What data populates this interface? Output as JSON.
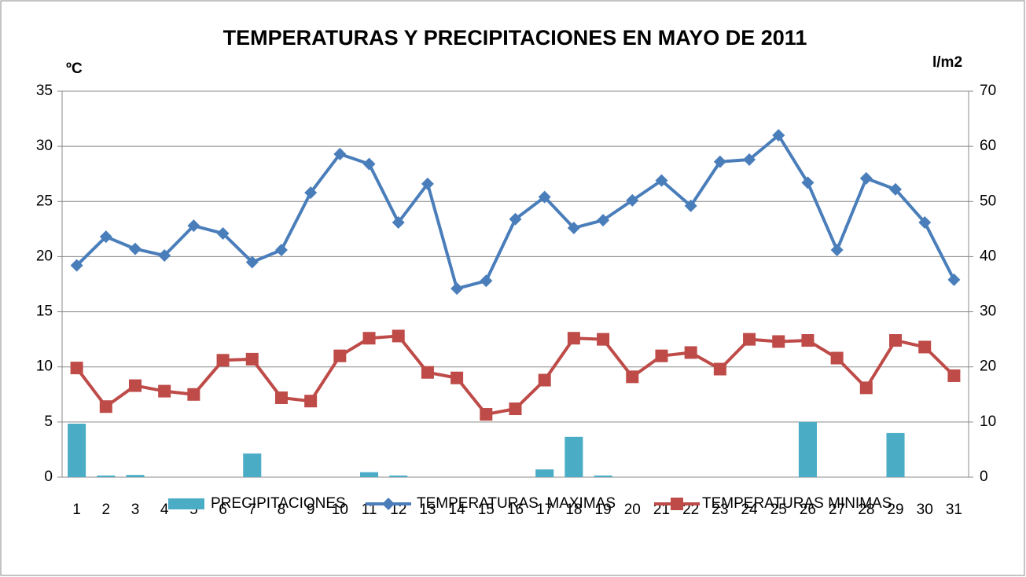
{
  "chart_data": {
    "type": "bar_line",
    "title": "TEMPERATURAS Y PRECIPITACIONES EN MAYO DE 2011",
    "y_label": "ºC",
    "y2_label": "l/m2",
    "categories": [
      "1",
      "2",
      "3",
      "4",
      "5",
      "6",
      "7",
      "8",
      "9",
      "10",
      "11",
      "12",
      "13",
      "14",
      "15",
      "16",
      "17",
      "18",
      "19",
      "20",
      "21",
      "22",
      "23",
      "24",
      "25",
      "26",
      "27",
      "28",
      "29",
      "30",
      "31"
    ],
    "series": [
      {
        "name": "PRECIPITACIONES",
        "type": "bar",
        "axis": "y2",
        "color": "#4bacc6",
        "values": [
          9.7,
          0.3,
          0.4,
          0,
          0,
          0,
          4.3,
          0,
          0,
          0,
          0.9,
          0.3,
          0,
          0,
          0,
          0,
          1.4,
          7.3,
          0.3,
          0,
          0,
          0,
          0,
          0,
          0,
          10.0,
          0,
          0,
          8.0,
          0,
          0
        ]
      },
      {
        "name": "TEMPERATURAS  MAXIMAS",
        "type": "line",
        "marker": "diamond",
        "color": "#4a7ebb",
        "values": [
          19.2,
          21.8,
          20.7,
          20.1,
          22.8,
          22.1,
          19.5,
          20.6,
          25.8,
          29.3,
          28.4,
          23.1,
          26.6,
          17.1,
          17.8,
          23.4,
          25.4,
          22.6,
          23.3,
          25.1,
          26.9,
          24.6,
          28.6,
          28.8,
          31.0,
          26.7,
          20.6,
          27.1,
          26.1,
          23.1,
          17.9
        ]
      },
      {
        "name": "TEMPERATURAS MINIMAS",
        "type": "line",
        "marker": "square",
        "color": "#be4b48",
        "values": [
          9.9,
          6.4,
          8.3,
          7.8,
          7.5,
          10.6,
          10.7,
          7.2,
          6.9,
          11.0,
          12.6,
          12.8,
          9.5,
          9.0,
          5.7,
          6.2,
          8.8,
          12.6,
          12.5,
          9.1,
          11.0,
          11.3,
          9.8,
          12.5,
          12.3,
          12.4,
          10.8,
          8.1,
          12.4,
          11.8,
          9.2
        ]
      }
    ],
    "ylim": [
      0,
      35
    ],
    "yticks": [
      0,
      5,
      10,
      15,
      20,
      25,
      30,
      35
    ],
    "y2lim": [
      0,
      70
    ],
    "y2ticks": [
      0,
      10,
      20,
      30,
      40,
      50,
      60,
      70
    ],
    "grid": true,
    "legend": "bottom"
  }
}
